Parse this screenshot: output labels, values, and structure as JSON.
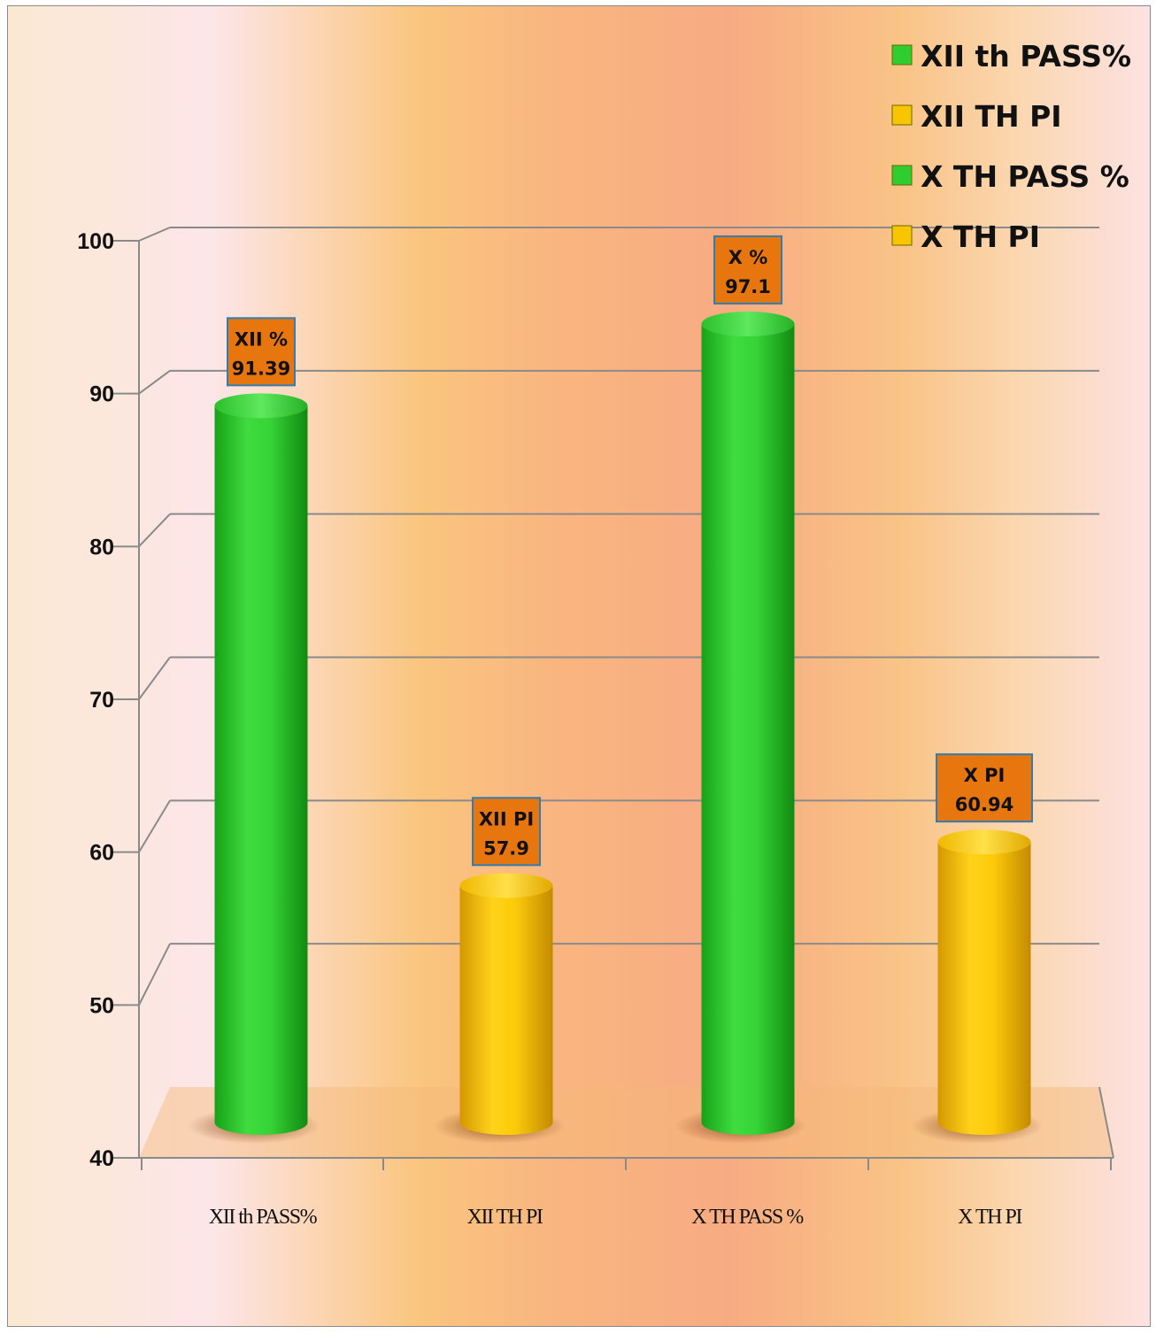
{
  "chart_data": {
    "type": "bar",
    "categories": [
      "XII th PASS%",
      "XII TH PI",
      "X TH PASS %",
      "X TH PI"
    ],
    "values": [
      91.39,
      57.9,
      97.1,
      60.94
    ],
    "bar_colors": [
      "#2fce2f",
      "#f7c600",
      "#2fce2f",
      "#f7c600"
    ],
    "data_labels": [
      {
        "line1": "XII %",
        "line2": "91.39"
      },
      {
        "line1": "XII PI",
        "line2": "57.9"
      },
      {
        "line1": "X %",
        "line2": "97.1"
      },
      {
        "line1": "X PI",
        "line2": "60.94"
      }
    ],
    "ylim": [
      40,
      100
    ],
    "yticks": [
      40,
      50,
      60,
      70,
      80,
      90,
      100
    ],
    "grid": true,
    "legend": {
      "position": "top-right",
      "entries": [
        {
          "name": "XII th PASS%",
          "color": "#2fce2f"
        },
        {
          "name": "XII TH PI",
          "color": "#f7c600"
        },
        {
          "name": "X TH PASS %",
          "color": "#2fce2f"
        },
        {
          "name": "X TH PI",
          "color": "#f7c600"
        }
      ]
    },
    "colors": {
      "label_box": "#e8760e",
      "label_box_border": "#2f7db3",
      "axis": "#8a8a8a"
    }
  }
}
